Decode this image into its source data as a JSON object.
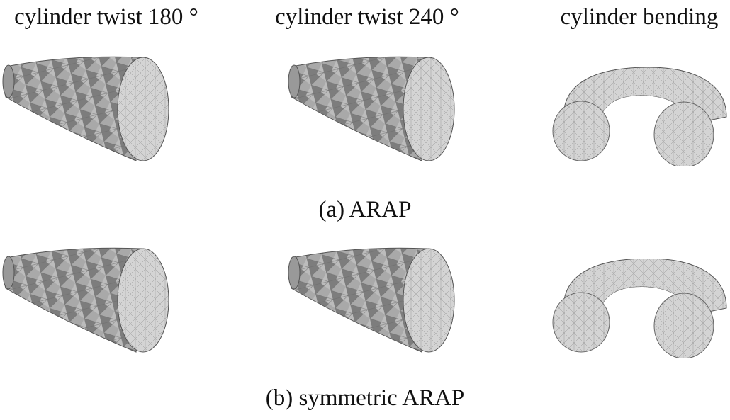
{
  "columns": [
    "cylinder twist 180 °",
    "cylinder twist 240 °",
    "cylinder bending"
  ],
  "rows": [
    {
      "caption": "(a) ARAP"
    },
    {
      "caption": "(b) symmetric ARAP"
    }
  ]
}
